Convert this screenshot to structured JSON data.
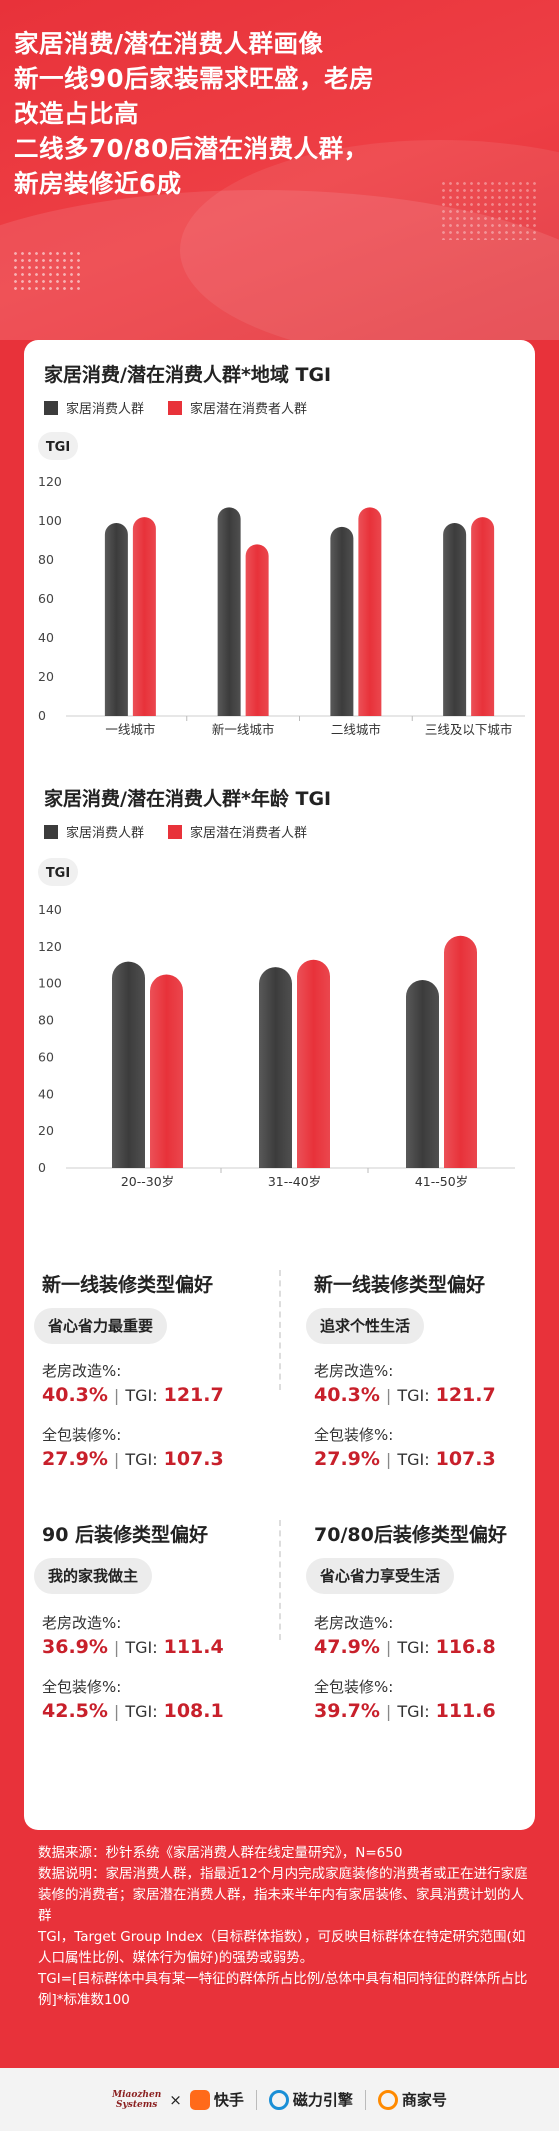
{
  "hero": {
    "title_lines": [
      "家居消费/潜在消费人群画像",
      "新一线90后家装需求旺盛，老房",
      "改造占比高",
      "二线多70/80后潜在消费人群，",
      "新房装修近6成"
    ]
  },
  "colors": {
    "dark": "#3c3c3c",
    "red": "#e8323a",
    "accent": "#c8202b"
  },
  "chart_data": [
    {
      "type": "bar",
      "title": "家居消费/潜在消费人群*地域 TGI",
      "ylabel": "TGI",
      "ylim": [
        0,
        120
      ],
      "yticks": [
        "120",
        "100",
        "80",
        "60",
        "40",
        "20",
        "0"
      ],
      "categories": [
        "一线城市",
        "新一线城市",
        "二线城市",
        "三线及以下城市"
      ],
      "series": [
        {
          "name": "家居消费人群",
          "values": [
            99,
            107,
            97,
            99
          ]
        },
        {
          "name": "家居潜在消费者人群",
          "values": [
            102,
            88,
            107,
            102
          ]
        }
      ]
    },
    {
      "type": "bar",
      "title": "家居消费/潜在消费人群*年龄 TGI",
      "ylabel": "TGI",
      "ylim": [
        0,
        140
      ],
      "yticks": [
        "140",
        "120",
        "100",
        "80",
        "60",
        "40",
        "20",
        "0"
      ],
      "categories": [
        "20--30岁",
        "31--40岁",
        "41--50岁"
      ],
      "series": [
        {
          "name": "家居消费人群",
          "values": [
            112,
            109,
            102
          ]
        },
        {
          "name": "家居潜在消费者人群",
          "values": [
            105,
            113,
            126
          ]
        }
      ]
    }
  ],
  "prefs": [
    {
      "title": "新一线装修类型偏好",
      "tag": "省心省力最重要",
      "items": [
        {
          "label": "老房改造%:",
          "pct": "40.3%",
          "tgi_label": "TGI:",
          "tgi": "121.7"
        },
        {
          "label": "全包装修%:",
          "pct": "27.9%",
          "tgi_label": "TGI:",
          "tgi": "107.3"
        }
      ]
    },
    {
      "title": "新一线装修类型偏好",
      "tag": "追求个性生活",
      "items": [
        {
          "label": "老房改造%:",
          "pct": "40.3%",
          "tgi_label": "TGI:",
          "tgi": "121.7"
        },
        {
          "label": "全包装修%:",
          "pct": "27.9%",
          "tgi_label": "TGI:",
          "tgi": "107.3"
        }
      ]
    },
    {
      "title": "90 后装修类型偏好",
      "tag": "我的家我做主",
      "items": [
        {
          "label": "老房改造%:",
          "pct": "36.9%",
          "tgi_label": "TGI:",
          "tgi": "111.4"
        },
        {
          "label": "全包装修%:",
          "pct": "42.5%",
          "tgi_label": "TGI:",
          "tgi": "108.1"
        }
      ]
    },
    {
      "title": "70/80后装修类型偏好",
      "tag": "省心省力享受生活",
      "items": [
        {
          "label": "老房改造%:",
          "pct": "47.9%",
          "tgi_label": "TGI:",
          "tgi": "116.8"
        },
        {
          "label": "全包装修%:",
          "pct": "39.7%",
          "tgi_label": "TGI:",
          "tgi": "111.6"
        }
      ]
    }
  ],
  "notes": [
    "数据来源：秒针系统《家居消费人群在线定量研究》，N=650",
    "数据说明：家居消费人群，指最近12个月内完成家庭装修的消费者或正在进行家庭装修的消费者；家居潜在消费人群，指未来半年内有家居装修、家具消费计划的人群",
    "TGI，Target Group Index（目标群体指数），可反映目标群体在特定研究范围(如人口属性比例、媒体行为偏好)的强势或弱势。",
    "TGI=[目标群体中具有某一特征的群体所占比例/总体中具有相同特征的群体所占比例]*标准数100"
  ],
  "footer": {
    "miaozhen_line1": "Miaozhen",
    "miaozhen_line2": "Systems",
    "times": "×",
    "kuaishou": "快手",
    "cili": "磁力引擎",
    "shangjia": "商家号"
  }
}
